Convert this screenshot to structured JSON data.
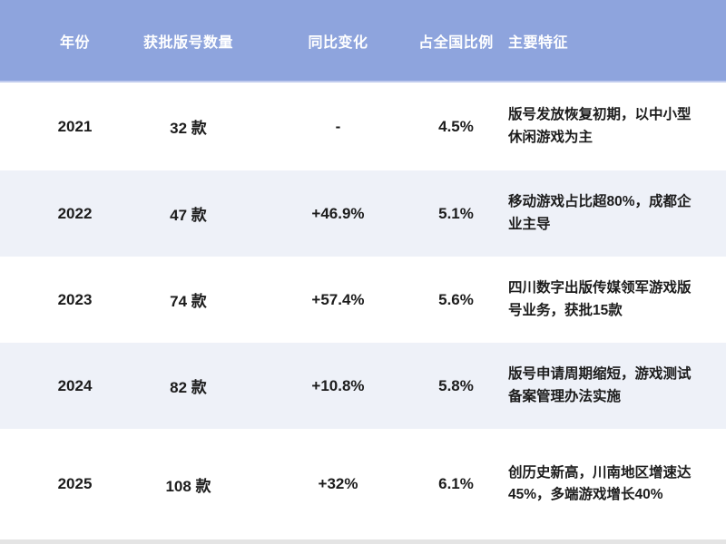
{
  "chart_data": {
    "type": "table",
    "title": "",
    "columns": [
      "年份",
      "获批版号数量",
      "同比变化",
      "占全国比例",
      "主要特征"
    ],
    "rows": [
      {
        "year": "2021",
        "count": "32 款",
        "yoy": "-",
        "share": "4.5%",
        "features": "版号发放恢复初期，以中小型休闲游戏为主"
      },
      {
        "year": "2022",
        "count": "47 款",
        "yoy": "+46.9%",
        "share": "5.1%",
        "features": "移动游戏占比超80%，成都企业主导"
      },
      {
        "year": "2023",
        "count": "74 款",
        "yoy": "+57.4%",
        "share": "5.6%",
        "features": "四川数字出版传媒领军游戏版号业务，获批15款"
      },
      {
        "year": "2024",
        "count": "82 款",
        "yoy": "+10.8%",
        "share": "5.8%",
        "features": "版号申请周期缩短，游戏测试备案管理办法实施"
      },
      {
        "year": "2025",
        "count": "108 款",
        "yoy": "+32%",
        "share": "6.1%",
        "features": "创历史新高，川南地区增速达45%，多端游戏增长40%"
      }
    ],
    "layout": {
      "striped_rows": [
        "2022",
        "2024"
      ],
      "header_position": "top",
      "grid": "off"
    },
    "colors": {
      "header_bg": "#8ea4dd",
      "header_text": "#ffffff",
      "stripe_bg": "#eef1f8",
      "body_text": "#1c1c1c",
      "bottom_bar": "#e4e4e4"
    }
  }
}
